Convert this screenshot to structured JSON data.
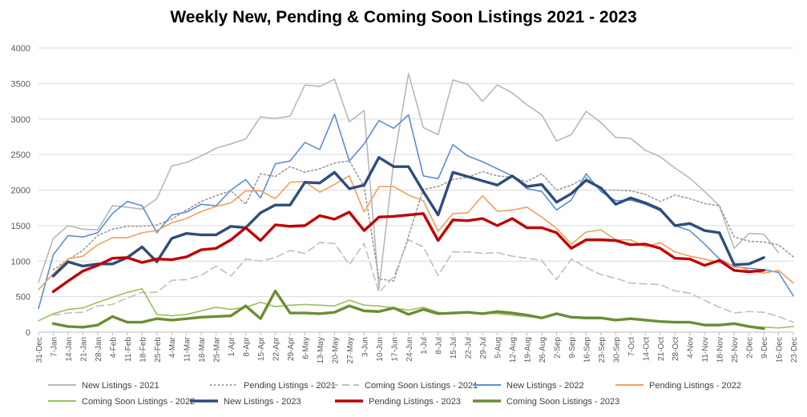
{
  "chart_data": {
    "type": "line",
    "title": "Weekly New, Pending & Coming Soon Listings 2021 - 2023",
    "xlabel": "",
    "ylabel": "",
    "ylim": [
      0,
      4000
    ],
    "yticks": [
      0,
      500,
      1000,
      1500,
      2000,
      2500,
      3000,
      3500,
      4000
    ],
    "grid": true,
    "legend_position": "bottom",
    "categories": [
      "31-Dec",
      "7-Jan",
      "14-Jan",
      "21-Jan",
      "28-Jan",
      "4-Feb",
      "11-Feb",
      "18-Feb",
      "25-Feb",
      "4-Mar",
      "11-Mar",
      "18-Mar",
      "25-Mar",
      "1-Apr",
      "8-Apr",
      "15-Apr",
      "22-Apr",
      "29-Apr",
      "6-May",
      "13-May",
      "20-May",
      "27-May",
      "3-Jun",
      "10-Jun",
      "17-Jun",
      "24-Jun",
      "1-Jul",
      "8-Jul",
      "15-Jul",
      "22-Jul",
      "29-Jul",
      "5-Aug",
      "12-Aug",
      "19-Aug",
      "26-Aug",
      "2-Sep",
      "9-Sep",
      "16-Sep",
      "23-Sep",
      "30-Sep",
      "7-Oct",
      "14-Oct",
      "21-Oct",
      "28-Oct",
      "4-Nov",
      "11-Nov",
      "18-Nov",
      "25-Nov",
      "2-Dec",
      "9-Dec",
      "16-Dec",
      "23-Dec"
    ],
    "series": [
      {
        "name": "New Listings - 2021",
        "color": "#b8b8b8",
        "dash": "solid",
        "width": 1.6,
        "values": [
          700,
          1320,
          1500,
          1450,
          1440,
          1780,
          1760,
          1730,
          1880,
          2340,
          2390,
          2480,
          2590,
          2650,
          2720,
          3030,
          3010,
          3040,
          3480,
          3460,
          3560,
          2960,
          3120,
          610,
          2400,
          3640,
          2880,
          2780,
          3550,
          3490,
          3250,
          3480,
          3370,
          3200,
          3060,
          2690,
          2780,
          3110,
          2950,
          2740,
          2730,
          2560,
          2470,
          2310,
          2170,
          1980,
          1780,
          1180,
          1390,
          1380,
          1120,
          null
        ]
      },
      {
        "name": "Pending Listings - 2021",
        "color": "#9a9a9a",
        "dash": "2,3",
        "width": 1.6,
        "values": [
          null,
          880,
          1020,
          1150,
          1360,
          1450,
          1490,
          1490,
          1510,
          1590,
          1720,
          1840,
          1920,
          1990,
          1800,
          2230,
          2190,
          2330,
          2250,
          2300,
          2380,
          2410,
          2050,
          750,
          720,
          1350,
          2010,
          2050,
          2150,
          2180,
          2260,
          2200,
          2180,
          2120,
          2230,
          2000,
          2070,
          2180,
          2000,
          2000,
          1990,
          1940,
          1840,
          1930,
          1880,
          1810,
          1780,
          1340,
          1280,
          1270,
          1230,
          1060
        ]
      },
      {
        "name": "Coming Soon Listings - 2021",
        "color": "#bfbfbf",
        "dash": "9,5",
        "width": 1.6,
        "values": [
          null,
          240,
          270,
          280,
          370,
          390,
          480,
          560,
          560,
          730,
          740,
          800,
          930,
          790,
          1030,
          1000,
          1050,
          1150,
          1110,
          1260,
          1250,
          950,
          1250,
          560,
          780,
          1300,
          1200,
          800,
          1130,
          1130,
          1110,
          1120,
          1070,
          1040,
          1010,
          740,
          1030,
          910,
          810,
          760,
          690,
          680,
          670,
          580,
          550,
          450,
          350,
          270,
          290,
          280,
          220,
          140
        ]
      },
      {
        "name": "New Listings - 2022",
        "color": "#5b8fd1",
        "dash": "solid",
        "width": 1.6,
        "values": [
          330,
          1090,
          1360,
          1340,
          1400,
          1670,
          1840,
          1780,
          1400,
          1650,
          1690,
          1800,
          1780,
          2000,
          2150,
          1890,
          2370,
          2410,
          2670,
          2570,
          3070,
          2410,
          2650,
          2980,
          2870,
          3060,
          2200,
          2160,
          2640,
          2480,
          2400,
          2300,
          2200,
          2020,
          1980,
          1720,
          1860,
          2230,
          1980,
          1850,
          1860,
          1800,
          1710,
          1500,
          1430,
          1240,
          1030,
          920,
          900,
          880,
          840,
          510
        ]
      },
      {
        "name": "Pending Listings - 2022",
        "color": "#f0a05c",
        "dash": "solid",
        "width": 1.6,
        "values": [
          600,
          820,
          1030,
          1070,
          1230,
          1330,
          1330,
          1400,
          1430,
          1540,
          1600,
          1700,
          1770,
          1820,
          1990,
          1990,
          1880,
          2110,
          2120,
          1970,
          2080,
          2200,
          1690,
          2050,
          2050,
          1930,
          1850,
          1420,
          1670,
          1680,
          1920,
          1700,
          1720,
          1760,
          1620,
          1460,
          1240,
          1410,
          1440,
          1300,
          1300,
          1200,
          1260,
          1130,
          1070,
          1030,
          980,
          940,
          870,
          830,
          870,
          690
        ]
      },
      {
        "name": "Coming Soon Listings - 2022",
        "color": "#9bbf5f",
        "dash": "solid",
        "width": 1.6,
        "values": [
          160,
          260,
          320,
          340,
          420,
          490,
          560,
          610,
          250,
          230,
          250,
          300,
          350,
          320,
          350,
          420,
          360,
          380,
          390,
          380,
          370,
          450,
          380,
          370,
          340,
          310,
          350,
          280,
          260,
          270,
          270,
          260,
          240,
          220,
          200,
          250,
          220,
          200,
          210,
          170,
          180,
          170,
          150,
          140,
          140,
          110,
          100,
          110,
          80,
          70,
          60,
          80
        ]
      },
      {
        "name": "New Listings - 2023",
        "color": "#2e4d7b",
        "dash": "solid",
        "width": 3.4,
        "values": [
          null,
          790,
          990,
          930,
          960,
          960,
          1050,
          1200,
          990,
          1320,
          1390,
          1370,
          1370,
          1490,
          1470,
          1680,
          1790,
          1790,
          2110,
          2100,
          2250,
          2020,
          2070,
          2460,
          2330,
          2330,
          1980,
          1650,
          2250,
          2190,
          2130,
          2070,
          2200,
          2050,
          2080,
          1830,
          1950,
          2140,
          2030,
          1800,
          1890,
          1820,
          1730,
          1500,
          1530,
          1430,
          1400,
          950,
          960,
          1050,
          null,
          null
        ]
      },
      {
        "name": "Pending Listings - 2023",
        "color": "#c00000",
        "dash": "solid",
        "width": 3.4,
        "values": [
          null,
          570,
          720,
          860,
          940,
          1040,
          1050,
          980,
          1030,
          1020,
          1060,
          1160,
          1180,
          1300,
          1470,
          1290,
          1510,
          1490,
          1500,
          1640,
          1590,
          1690,
          1430,
          1620,
          1630,
          1650,
          1670,
          1290,
          1580,
          1570,
          1600,
          1500,
          1600,
          1470,
          1470,
          1400,
          1180,
          1300,
          1300,
          1290,
          1230,
          1240,
          1180,
          1040,
          1030,
          940,
          1010,
          870,
          850,
          870,
          null,
          null
        ]
      },
      {
        "name": "Coming Soon Listings - 2023",
        "color": "#6a8e33",
        "dash": "solid",
        "width": 3.4,
        "values": [
          null,
          120,
          80,
          70,
          100,
          220,
          140,
          140,
          190,
          170,
          190,
          210,
          220,
          230,
          370,
          190,
          580,
          270,
          270,
          260,
          280,
          370,
          300,
          290,
          340,
          250,
          320,
          260,
          270,
          280,
          260,
          290,
          270,
          240,
          200,
          260,
          210,
          200,
          200,
          170,
          190,
          170,
          150,
          140,
          140,
          100,
          100,
          120,
          80,
          50,
          null,
          null
        ]
      }
    ]
  }
}
